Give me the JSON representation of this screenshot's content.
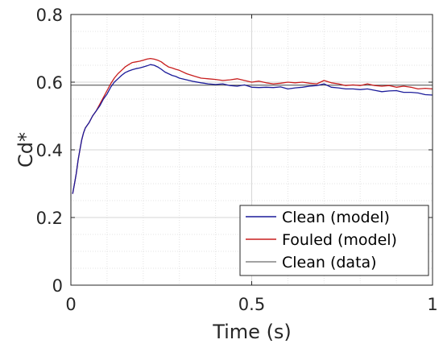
{
  "chart_data": {
    "type": "line",
    "xlabel": "Time (s)",
    "ylabel": "Cd*",
    "xlim": [
      0,
      1
    ],
    "ylim": [
      0,
      0.8
    ],
    "x_ticks": [
      0,
      0.5,
      1
    ],
    "x_tick_labels": [
      "0",
      "0.5",
      "1"
    ],
    "y_ticks": [
      0,
      0.2,
      0.4,
      0.6,
      0.8
    ],
    "y_tick_labels": [
      "0",
      "0.2",
      "0.4",
      "0.6",
      "0.8"
    ],
    "grid": true,
    "minor_grid": true,
    "legend_position": "bottom-right",
    "series": [
      {
        "name": "Clean (model)",
        "color": "#1c1c9a",
        "points": [
          [
            0.005,
            0.27
          ],
          [
            0.01,
            0.3
          ],
          [
            0.015,
            0.33
          ],
          [
            0.02,
            0.37
          ],
          [
            0.025,
            0.4
          ],
          [
            0.03,
            0.43
          ],
          [
            0.035,
            0.45
          ],
          [
            0.04,
            0.465
          ],
          [
            0.05,
            0.48
          ],
          [
            0.06,
            0.5
          ],
          [
            0.07,
            0.515
          ],
          [
            0.08,
            0.53
          ],
          [
            0.09,
            0.55
          ],
          [
            0.1,
            0.565
          ],
          [
            0.11,
            0.585
          ],
          [
            0.12,
            0.6
          ],
          [
            0.13,
            0.61
          ],
          [
            0.14,
            0.62
          ],
          [
            0.15,
            0.628
          ],
          [
            0.16,
            0.633
          ],
          [
            0.17,
            0.637
          ],
          [
            0.18,
            0.64
          ],
          [
            0.19,
            0.642
          ],
          [
            0.2,
            0.645
          ],
          [
            0.21,
            0.648
          ],
          [
            0.22,
            0.652
          ],
          [
            0.23,
            0.65
          ],
          [
            0.24,
            0.645
          ],
          [
            0.25,
            0.638
          ],
          [
            0.26,
            0.63
          ],
          [
            0.27,
            0.625
          ],
          [
            0.28,
            0.62
          ],
          [
            0.29,
            0.617
          ],
          [
            0.3,
            0.612
          ],
          [
            0.32,
            0.607
          ],
          [
            0.34,
            0.602
          ],
          [
            0.36,
            0.598
          ],
          [
            0.38,
            0.595
          ],
          [
            0.4,
            0.593
          ],
          [
            0.42,
            0.595
          ],
          [
            0.44,
            0.59
          ],
          [
            0.46,
            0.588
          ],
          [
            0.48,
            0.592
          ],
          [
            0.5,
            0.585
          ],
          [
            0.52,
            0.584
          ],
          [
            0.54,
            0.585
          ],
          [
            0.56,
            0.584
          ],
          [
            0.58,
            0.586
          ],
          [
            0.6,
            0.58
          ],
          [
            0.62,
            0.583
          ],
          [
            0.64,
            0.585
          ],
          [
            0.66,
            0.588
          ],
          [
            0.68,
            0.59
          ],
          [
            0.7,
            0.595
          ],
          [
            0.72,
            0.585
          ],
          [
            0.74,
            0.583
          ],
          [
            0.76,
            0.58
          ],
          [
            0.78,
            0.58
          ],
          [
            0.8,
            0.578
          ],
          [
            0.82,
            0.58
          ],
          [
            0.84,
            0.576
          ],
          [
            0.86,
            0.572
          ],
          [
            0.88,
            0.574
          ],
          [
            0.9,
            0.575
          ],
          [
            0.92,
            0.57
          ],
          [
            0.94,
            0.57
          ],
          [
            0.96,
            0.568
          ],
          [
            0.98,
            0.563
          ],
          [
            1.0,
            0.562
          ]
        ]
      },
      {
        "name": "Fouled (model)",
        "color": "#c81e1e",
        "points": [
          [
            0.005,
            0.27
          ],
          [
            0.01,
            0.3
          ],
          [
            0.015,
            0.33
          ],
          [
            0.02,
            0.37
          ],
          [
            0.025,
            0.4
          ],
          [
            0.03,
            0.43
          ],
          [
            0.035,
            0.45
          ],
          [
            0.04,
            0.465
          ],
          [
            0.05,
            0.48
          ],
          [
            0.06,
            0.5
          ],
          [
            0.07,
            0.515
          ],
          [
            0.08,
            0.535
          ],
          [
            0.09,
            0.555
          ],
          [
            0.1,
            0.575
          ],
          [
            0.11,
            0.595
          ],
          [
            0.12,
            0.612
          ],
          [
            0.13,
            0.625
          ],
          [
            0.14,
            0.635
          ],
          [
            0.15,
            0.645
          ],
          [
            0.16,
            0.652
          ],
          [
            0.17,
            0.658
          ],
          [
            0.18,
            0.66
          ],
          [
            0.19,
            0.662
          ],
          [
            0.2,
            0.665
          ],
          [
            0.21,
            0.668
          ],
          [
            0.22,
            0.67
          ],
          [
            0.23,
            0.668
          ],
          [
            0.24,
            0.665
          ],
          [
            0.25,
            0.66
          ],
          [
            0.26,
            0.652
          ],
          [
            0.27,
            0.645
          ],
          [
            0.28,
            0.642
          ],
          [
            0.29,
            0.638
          ],
          [
            0.3,
            0.635
          ],
          [
            0.32,
            0.625
          ],
          [
            0.34,
            0.618
          ],
          [
            0.36,
            0.612
          ],
          [
            0.38,
            0.61
          ],
          [
            0.4,
            0.608
          ],
          [
            0.42,
            0.605
          ],
          [
            0.44,
            0.607
          ],
          [
            0.46,
            0.61
          ],
          [
            0.48,
            0.605
          ],
          [
            0.5,
            0.6
          ],
          [
            0.52,
            0.603
          ],
          [
            0.54,
            0.598
          ],
          [
            0.56,
            0.595
          ],
          [
            0.58,
            0.597
          ],
          [
            0.6,
            0.6
          ],
          [
            0.62,
            0.598
          ],
          [
            0.64,
            0.6
          ],
          [
            0.66,
            0.597
          ],
          [
            0.68,
            0.595
          ],
          [
            0.7,
            0.605
          ],
          [
            0.72,
            0.598
          ],
          [
            0.74,
            0.595
          ],
          [
            0.76,
            0.59
          ],
          [
            0.78,
            0.592
          ],
          [
            0.8,
            0.59
          ],
          [
            0.82,
            0.595
          ],
          [
            0.84,
            0.59
          ],
          [
            0.86,
            0.588
          ],
          [
            0.88,
            0.59
          ],
          [
            0.9,
            0.585
          ],
          [
            0.92,
            0.588
          ],
          [
            0.94,
            0.585
          ],
          [
            0.96,
            0.58
          ],
          [
            0.98,
            0.582
          ],
          [
            1.0,
            0.58
          ]
        ]
      },
      {
        "name": "Clean (data)",
        "color": "#444444",
        "points": [
          [
            0,
            0.591
          ],
          [
            1,
            0.591
          ]
        ]
      }
    ]
  }
}
